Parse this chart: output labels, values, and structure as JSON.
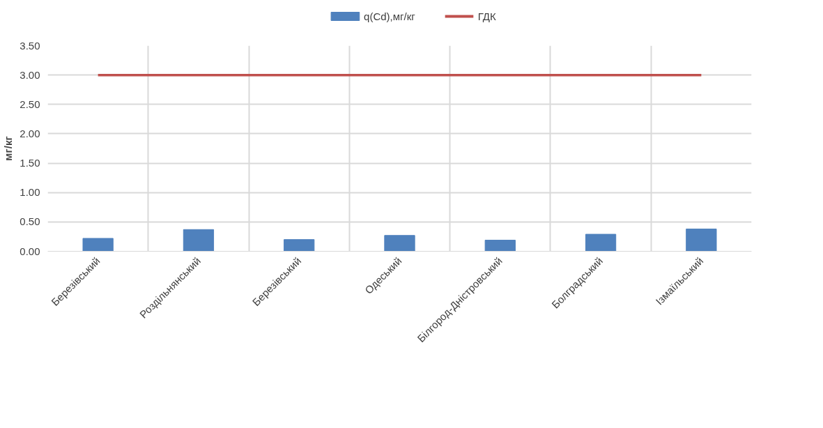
{
  "chart_data": {
    "type": "bar",
    "ylabel": "мг/кг",
    "categories": [
      "Березівський",
      "Роздільнянський",
      "Березівський",
      "Одеський",
      "Білгород-Дністровський",
      "Болградський",
      "Ізмаїльський"
    ],
    "series": [
      {
        "name": "q(Cd),мг/кг",
        "color": "#4f81bd",
        "values": [
          0.22,
          0.37,
          0.2,
          0.27,
          0.19,
          0.29,
          0.38
        ]
      },
      {
        "name": "ГДК",
        "type": "line",
        "color": "#c0504d",
        "values": [
          3,
          3,
          3,
          3,
          3,
          3,
          3
        ]
      }
    ],
    "ylim": [
      0,
      3.5
    ],
    "yticks": [
      {
        "value": 0,
        "label": "0.00"
      },
      {
        "value": 0.5,
        "label": "0.50"
      },
      {
        "value": 1,
        "label": "1.00"
      },
      {
        "value": 1.5,
        "label": "1.50"
      },
      {
        "value": 2,
        "label": "2.00"
      },
      {
        "value": 2.5,
        "label": "2.50"
      },
      {
        "value": 3,
        "label": "3.00"
      },
      {
        "value": 3.5,
        "label": "3.50"
      }
    ],
    "grid": true,
    "legend": "top"
  }
}
